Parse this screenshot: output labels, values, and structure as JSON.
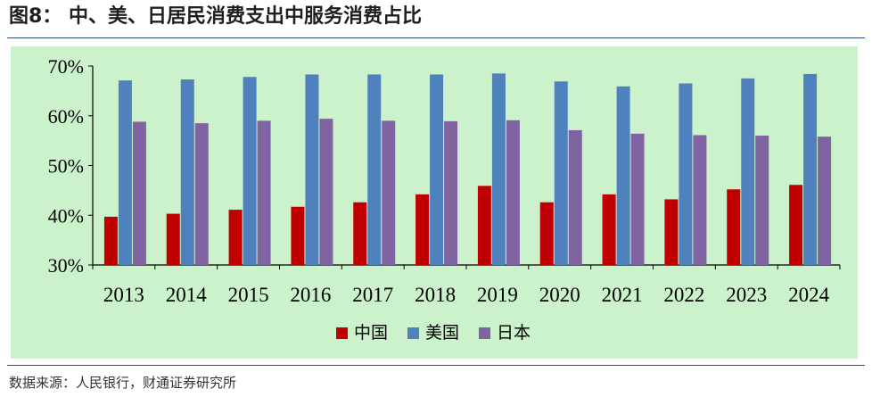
{
  "figure": {
    "number": "图8：",
    "title": "中、美、日居民消费支出中服务消费占比",
    "source": "数据来源：人民银行，财通证券研究所"
  },
  "colors": {
    "chart_background": "#ccf2cc",
    "中国": "#c00000",
    "美国": "#4f81bd",
    "日本": "#8064a2",
    "rule": "#2b4a8a"
  },
  "chart_data": {
    "type": "bar",
    "categories": [
      "2013",
      "2014",
      "2015",
      "2016",
      "2017",
      "2018",
      "2019",
      "2020",
      "2021",
      "2022",
      "2023",
      "2024"
    ],
    "series": [
      {
        "name": "中国",
        "values": [
          39.7,
          40.3,
          41.1,
          41.7,
          42.6,
          44.2,
          45.9,
          42.6,
          44.2,
          43.2,
          45.2,
          46.1
        ]
      },
      {
        "name": "美国",
        "values": [
          67.1,
          67.3,
          67.8,
          68.3,
          68.3,
          68.3,
          68.5,
          66.9,
          65.9,
          66.5,
          67.5,
          68.4
        ]
      },
      {
        "name": "日本",
        "values": [
          58.8,
          58.5,
          59.0,
          59.4,
          59.0,
          58.9,
          59.1,
          57.1,
          56.4,
          56.1,
          56.0,
          55.8
        ]
      }
    ],
    "yticks": [
      "30%",
      "40%",
      "50%",
      "60%",
      "70%"
    ],
    "ylim": [
      30,
      70
    ],
    "legend_position": "bottom-center",
    "grid": false
  }
}
